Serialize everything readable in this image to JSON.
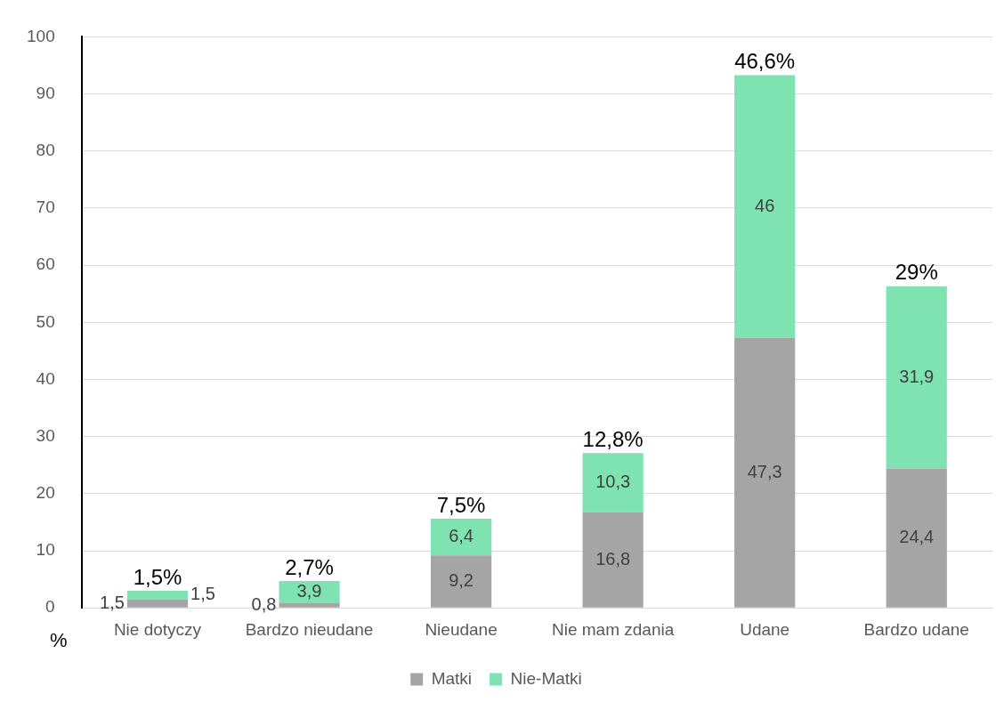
{
  "chart_data": {
    "type": "bar",
    "stacked": true,
    "ylabel": "%",
    "categories": [
      "Nie dotyczy",
      "Bardzo nieudane",
      "Nieudane",
      "Nie mam zdania",
      "Udane",
      "Bardzo udane"
    ],
    "series": [
      {
        "name": "Matki",
        "color": "#a5a5a5",
        "values": [
          1.5,
          0.8,
          9.2,
          16.8,
          47.3,
          24.4
        ],
        "value_labels": [
          "1,5",
          "0,8",
          "9,2",
          "16,8",
          "47,3",
          "24,4"
        ]
      },
      {
        "name": "Nie-Matki",
        "color": "#7ee3b0",
        "values": [
          1.5,
          3.9,
          6.4,
          10.3,
          46,
          31.9
        ],
        "value_labels": [
          "1,5",
          "3,9",
          "6,4",
          "10,3",
          "46",
          "31,9"
        ]
      }
    ],
    "annotations": [
      {
        "text": "1,5%",
        "x": "Nie dotyczy",
        "y": 3
      },
      {
        "text": "2,7%",
        "x": "Bardzo nieudane",
        "y": 4.7
      },
      {
        "text": "7,5%",
        "x": "Nieudane",
        "y": 15.6
      },
      {
        "text": "12,8%",
        "x": "Nie mam zdania",
        "y": 27.1
      },
      {
        "text": "46,6%",
        "x": "Udane",
        "y": 93.3
      },
      {
        "text": "29%",
        "x": "Bardzo udane",
        "y": 56.3
      }
    ],
    "ylim": [
      0,
      100
    ],
    "yticks": [
      0,
      10,
      20,
      30,
      40,
      50,
      60,
      70,
      80,
      90,
      100
    ],
    "grid": "y",
    "legend": "bottom"
  }
}
